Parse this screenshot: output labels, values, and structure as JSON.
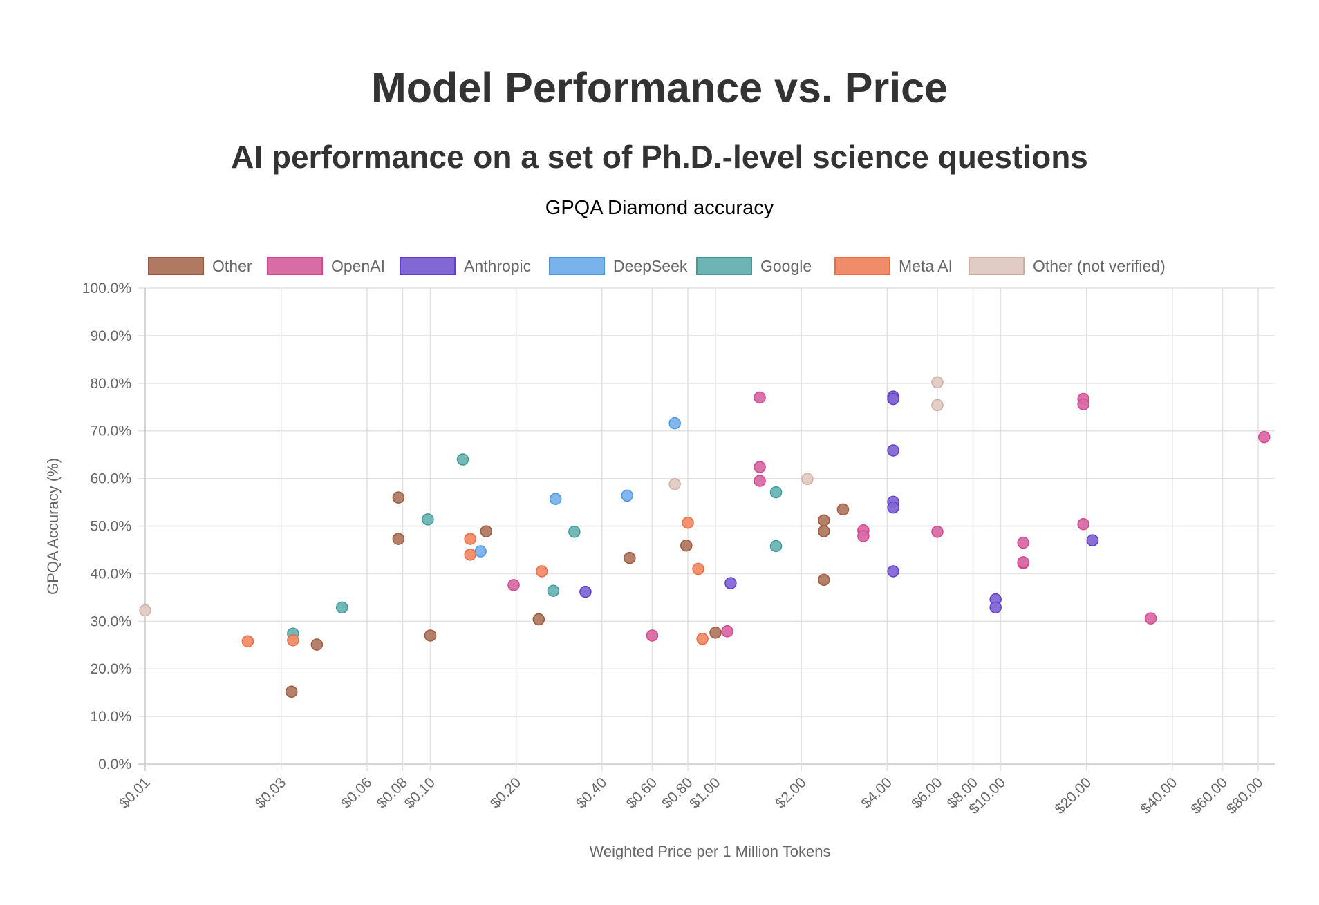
{
  "chart_data": {
    "type": "scatter",
    "title": "Model Performance vs. Price",
    "subtitle": "AI performance on a set of Ph.D.-level science questions",
    "caption": "GPQA Diamond accuracy",
    "xlabel": "Weighted Price per 1 Million Tokens",
    "ylabel": "GPQA Accuracy (%)",
    "xscale": "log",
    "xlim": [
      0.01,
      91
    ],
    "ylim": [
      0,
      100
    ],
    "grid": true,
    "legend_position": "top",
    "x_ticks": [
      {
        "value": 0.01,
        "label": "$0.01"
      },
      {
        "value": 0.03,
        "label": "$0.03"
      },
      {
        "value": 0.06,
        "label": "$0.06"
      },
      {
        "value": 0.08,
        "label": "$0.08"
      },
      {
        "value": 0.1,
        "label": "$0.10"
      },
      {
        "value": 0.2,
        "label": "$0.20"
      },
      {
        "value": 0.4,
        "label": "$0.40"
      },
      {
        "value": 0.6,
        "label": "$0.60"
      },
      {
        "value": 0.8,
        "label": "$0.80"
      },
      {
        "value": 1.0,
        "label": "$1.00"
      },
      {
        "value": 2.0,
        "label": "$2.00"
      },
      {
        "value": 4.0,
        "label": "$4.00"
      },
      {
        "value": 6.0,
        "label": "$6.00"
      },
      {
        "value": 8.0,
        "label": "$8.00"
      },
      {
        "value": 10.0,
        "label": "$10.00"
      },
      {
        "value": 20.0,
        "label": "$20.00"
      },
      {
        "value": 40.0,
        "label": "$40.00"
      },
      {
        "value": 60.0,
        "label": "$60.00"
      },
      {
        "value": 80.0,
        "label": "$80.00"
      }
    ],
    "y_ticks": [
      {
        "value": 0,
        "label": "0.0%"
      },
      {
        "value": 10,
        "label": "10.0%"
      },
      {
        "value": 20,
        "label": "20.0%"
      },
      {
        "value": 30,
        "label": "30.0%"
      },
      {
        "value": 40,
        "label": "40.0%"
      },
      {
        "value": 50,
        "label": "50.0%"
      },
      {
        "value": 60,
        "label": "60.0%"
      },
      {
        "value": 70,
        "label": "70.0%"
      },
      {
        "value": 80,
        "label": "80.0%"
      },
      {
        "value": 90,
        "label": "90.0%"
      },
      {
        "value": 100,
        "label": "100.0%"
      }
    ],
    "series": [
      {
        "name": "Other",
        "color": "#a0583c",
        "fill": "#b07a62",
        "points": [
          [
            0.0773,
            56.0
          ],
          [
            0.0773,
            47.3
          ],
          [
            0.1,
            27.0
          ],
          [
            0.0326,
            15.2
          ],
          [
            0.04,
            25.1
          ],
          [
            0.157,
            48.9
          ],
          [
            0.24,
            30.4
          ],
          [
            0.5,
            43.3
          ],
          [
            0.79,
            45.9
          ],
          [
            1.0,
            27.6
          ],
          [
            2.4,
            51.2
          ],
          [
            2.4,
            48.9
          ],
          [
            2.8,
            53.5
          ],
          [
            2.4,
            38.7
          ]
        ]
      },
      {
        "name": "OpenAI",
        "color": "#d6458e",
        "fill": "#d86ca5",
        "points": [
          [
            0.196,
            37.6
          ],
          [
            0.6,
            27.0
          ],
          [
            1.1,
            27.9
          ],
          [
            1.43,
            77.0
          ],
          [
            1.43,
            62.4
          ],
          [
            1.43,
            59.5
          ],
          [
            3.3,
            49.1
          ],
          [
            3.3,
            47.9
          ],
          [
            6.0,
            48.8
          ],
          [
            12.0,
            46.5
          ],
          [
            12.0,
            42.2
          ],
          [
            12.0,
            42.4
          ],
          [
            19.5,
            76.7
          ],
          [
            19.5,
            75.6
          ],
          [
            19.5,
            50.4
          ],
          [
            33.6,
            30.6
          ],
          [
            84.0,
            68.7
          ]
        ]
      },
      {
        "name": "Anthropic",
        "color": "#5e3fcb",
        "fill": "#8367d4",
        "points": [
          [
            0.35,
            36.2
          ],
          [
            1.13,
            38.0
          ],
          [
            4.2,
            77.2
          ],
          [
            4.2,
            76.7
          ],
          [
            4.2,
            65.9
          ],
          [
            4.2,
            55.1
          ],
          [
            4.2,
            53.9
          ],
          [
            4.2,
            40.5
          ],
          [
            9.6,
            34.6
          ],
          [
            9.6,
            32.9
          ],
          [
            21.0,
            47.0
          ]
        ]
      },
      {
        "name": "DeepSeek",
        "color": "#4a98e4",
        "fill": "#7ab3ec",
        "points": [
          [
            0.15,
            44.7
          ],
          [
            0.275,
            55.7
          ],
          [
            0.49,
            56.4
          ],
          [
            0.72,
            71.6
          ]
        ]
      },
      {
        "name": "Google",
        "color": "#3f9a9a",
        "fill": "#6cb5b4",
        "points": [
          [
            0.033,
            27.4
          ],
          [
            0.049,
            32.9
          ],
          [
            0.098,
            51.4
          ],
          [
            0.13,
            64.0
          ],
          [
            0.27,
            36.4
          ],
          [
            0.32,
            48.8
          ],
          [
            1.63,
            45.8
          ],
          [
            1.63,
            57.1
          ]
        ]
      },
      {
        "name": "Meta AI",
        "color": "#ec6b3f",
        "fill": "#f08c6a",
        "points": [
          [
            0.0229,
            25.8
          ],
          [
            0.033,
            26.0
          ],
          [
            0.138,
            47.3
          ],
          [
            0.138,
            44.0
          ],
          [
            0.246,
            40.5
          ],
          [
            0.8,
            50.7
          ],
          [
            0.87,
            41.0
          ],
          [
            0.9,
            26.3
          ]
        ]
      },
      {
        "name": "Other (not verified)",
        "color": "#cfada2",
        "fill": "#e1ccc5",
        "points": [
          [
            0.01,
            32.3
          ],
          [
            0.72,
            58.8
          ],
          [
            2.1,
            59.9
          ],
          [
            6.0,
            80.2
          ],
          [
            6.0,
            75.4
          ]
        ]
      }
    ]
  }
}
